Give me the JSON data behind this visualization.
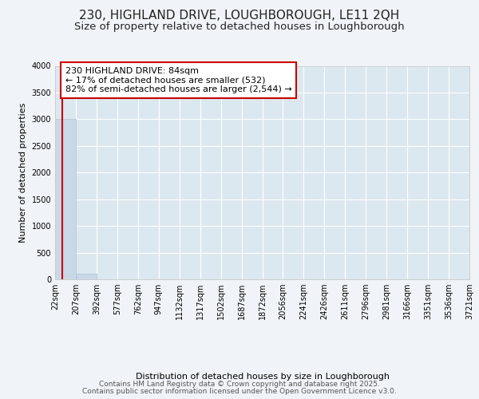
{
  "title1": "230, HIGHLAND DRIVE, LOUGHBOROUGH, LE11 2QH",
  "title2": "Size of property relative to detached houses in Loughborough",
  "xlabel": "Distribution of detached houses by size in Loughborough",
  "ylabel": "Number of detached properties",
  "bin_edges": [
    22,
    207,
    392,
    577,
    762,
    947,
    1132,
    1317,
    1502,
    1687,
    1872,
    2056,
    2241,
    2426,
    2611,
    2796,
    2981,
    3166,
    3351,
    3536,
    3721
  ],
  "bar_heights": [
    3000,
    110,
    5,
    2,
    1,
    1,
    0,
    0,
    0,
    0,
    0,
    0,
    0,
    0,
    0,
    0,
    0,
    0,
    0,
    0
  ],
  "bar_color": "#c8d8e8",
  "bar_edge_color": "#a8c0d0",
  "property_size": 84,
  "property_line_color": "#cc0000",
  "annotation_text": "230 HIGHLAND DRIVE: 84sqm\n← 17% of detached houses are smaller (532)\n82% of semi-detached houses are larger (2,544) →",
  "annotation_box_color": "#cc0000",
  "ylim": [
    0,
    4000
  ],
  "yticks": [
    0,
    500,
    1000,
    1500,
    2000,
    2500,
    3000,
    3500,
    4000
  ],
  "fig_background": "#f0f4f8",
  "plot_background": "#dce8f0",
  "footer1": "Contains HM Land Registry data © Crown copyright and database right 2025.",
  "footer2": "Contains public sector information licensed under the Open Government Licence v3.0.",
  "title_fontsize": 11,
  "subtitle_fontsize": 9.5,
  "axis_label_fontsize": 8,
  "tick_fontsize": 7,
  "footer_fontsize": 6.5,
  "annotation_fontsize": 8
}
